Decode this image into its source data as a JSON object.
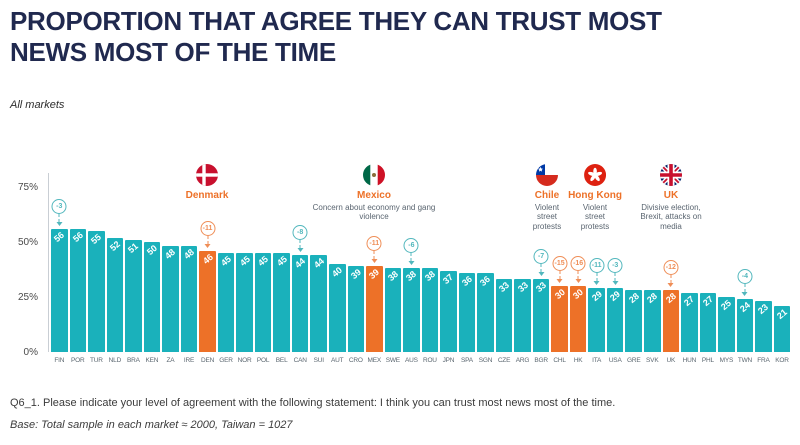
{
  "header": {
    "title_line1": "PROPORTION THAT AGREE THEY CAN TRUST MOST",
    "title_line2": "NEWS MOST OF THE TIME",
    "subtitle": "All markets"
  },
  "chart_data": {
    "type": "bar",
    "title": "PROPORTION THAT AGREE THEY CAN TRUST MOST NEWS MOST OF THE TIME",
    "subtitle": "All markets",
    "unit": "%",
    "ylim": [
      0,
      85
    ],
    "grid": false,
    "yticks": [
      {
        "label": "75%",
        "value": 75
      },
      {
        "label": "50%",
        "value": 50
      },
      {
        "label": "25%",
        "value": 25
      },
      {
        "label": "0%",
        "value": 0
      }
    ],
    "markets": [
      {
        "code": "FIN",
        "value": 56,
        "highlight": false,
        "change": "-3"
      },
      {
        "code": "POR",
        "value": 56,
        "highlight": false,
        "change": null
      },
      {
        "code": "TUR",
        "value": 55,
        "highlight": false,
        "change": null
      },
      {
        "code": "NLD",
        "value": 52,
        "highlight": false,
        "change": null
      },
      {
        "code": "BRA",
        "value": 51,
        "highlight": false,
        "change": null
      },
      {
        "code": "KEN",
        "value": 50,
        "highlight": false,
        "change": null
      },
      {
        "code": "ZA",
        "value": 48,
        "highlight": false,
        "change": null
      },
      {
        "code": "IRE",
        "value": 48,
        "highlight": false,
        "change": null
      },
      {
        "code": "DEN",
        "value": 46,
        "highlight": true,
        "change": "-11"
      },
      {
        "code": "GER",
        "value": 45,
        "highlight": false,
        "change": null
      },
      {
        "code": "NOR",
        "value": 45,
        "highlight": false,
        "change": null
      },
      {
        "code": "POL",
        "value": 45,
        "highlight": false,
        "change": null
      },
      {
        "code": "BEL",
        "value": 45,
        "highlight": false,
        "change": null
      },
      {
        "code": "CAN",
        "value": 44,
        "highlight": false,
        "change": "-8"
      },
      {
        "code": "SUI",
        "value": 44,
        "highlight": false,
        "change": null
      },
      {
        "code": "AUT",
        "value": 40,
        "highlight": false,
        "change": null
      },
      {
        "code": "CRO",
        "value": 39,
        "highlight": false,
        "change": null
      },
      {
        "code": "MEX",
        "value": 39,
        "highlight": true,
        "change": "-11"
      },
      {
        "code": "SWE",
        "value": 38,
        "highlight": false,
        "change": null
      },
      {
        "code": "AUS",
        "value": 38,
        "highlight": false,
        "change": "-6"
      },
      {
        "code": "ROU",
        "value": 38,
        "highlight": false,
        "change": null
      },
      {
        "code": "JPN",
        "value": 37,
        "highlight": false,
        "change": null
      },
      {
        "code": "SPA",
        "value": 36,
        "highlight": false,
        "change": null
      },
      {
        "code": "SGN",
        "value": 36,
        "highlight": false,
        "change": null
      },
      {
        "code": "CZE",
        "value": 33,
        "highlight": false,
        "change": null
      },
      {
        "code": "ARG",
        "value": 33,
        "highlight": false,
        "change": null
      },
      {
        "code": "BGR",
        "value": 33,
        "highlight": false,
        "change": "-7"
      },
      {
        "code": "CHL",
        "value": 30,
        "highlight": true,
        "change": "-15"
      },
      {
        "code": "HK",
        "value": 30,
        "highlight": true,
        "change": "-16"
      },
      {
        "code": "ITA",
        "value": 29,
        "highlight": false,
        "change": "-11"
      },
      {
        "code": "USA",
        "value": 29,
        "highlight": false,
        "change": "-3"
      },
      {
        "code": "GRE",
        "value": 28,
        "highlight": false,
        "change": null
      },
      {
        "code": "SVK",
        "value": 28,
        "highlight": false,
        "change": null
      },
      {
        "code": "UK",
        "value": 28,
        "highlight": true,
        "change": "-12"
      },
      {
        "code": "HUN",
        "value": 27,
        "highlight": false,
        "change": null
      },
      {
        "code": "PHL",
        "value": 27,
        "highlight": false,
        "change": null
      },
      {
        "code": "MYS",
        "value": 25,
        "highlight": false,
        "change": null
      },
      {
        "code": "TWN",
        "value": 24,
        "highlight": false,
        "change": "-4"
      },
      {
        "code": "FRA",
        "value": 23,
        "highlight": false,
        "change": null
      },
      {
        "code": "KOR",
        "value": 21,
        "highlight": false,
        "change": null
      }
    ],
    "callouts": [
      {
        "flag": "denmark-flag",
        "name": "Denmark",
        "note": ""
      },
      {
        "flag": "mexico-flag",
        "name": "Mexico",
        "note": "Concern about economy and gang violence"
      },
      {
        "flag": "chile-flag",
        "name": "Chile",
        "note": "Violent street protests"
      },
      {
        "flag": "hong-kong-flag",
        "name": "Hong Kong",
        "note": "Violent street protests"
      },
      {
        "flag": "uk-flag",
        "name": "UK",
        "note": "Divisive election, Brexit, attacks on media"
      }
    ]
  },
  "footer": {
    "question": "Q6_1.  Please indicate your level of agreement with the following statement: I think you can trust most news most of the time.",
    "base": "Base: Total sample in each market ≈ 2000, Taiwan = 1027"
  },
  "colors": {
    "bar_teal": "#1ab1bb",
    "bar_orange": "#ed7128",
    "title_navy": "#20294f",
    "annotation_teal": "#52b7bd",
    "annotation_orange": "#ef8e57",
    "axis_label_gray": "#5b6770",
    "footer_text": "#3b3b3b"
  }
}
